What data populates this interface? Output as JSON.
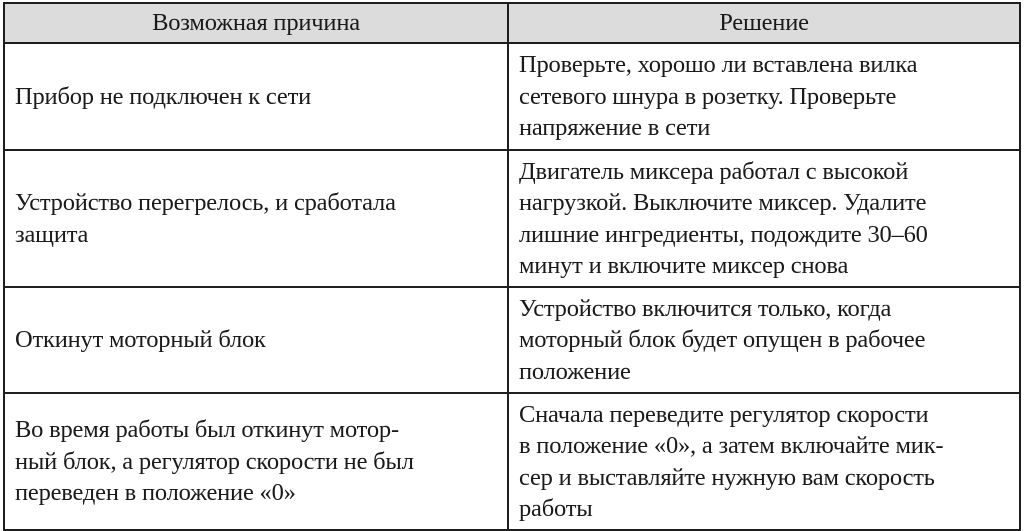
{
  "table": {
    "headers": [
      "Возможная причина",
      "Решение"
    ],
    "rows": [
      {
        "cause": "Прибор не подключен к сети",
        "solution": "Проверьте, хорошо ли вставлена вилка\nсетевого шнура в розетку. Проверьте\nнапряжение в сети"
      },
      {
        "cause": "Устройство перегрелось, и сработала\nзащита",
        "solution": "Двигатель миксера работал с высокой\nнагрузкой. Выключите миксер. Удалите\nлишние ингредиенты, подождите 30–60\nминут и включите миксер снова"
      },
      {
        "cause": "Откинут моторный блок",
        "solution": "Устройство включится только, когда\nмоторный блок будет опущен в рабочее\nположение"
      },
      {
        "cause": "Во время работы был откинут мотор-\nный блок, а регулятор скорости не был\nпереведен в положение «0»",
        "solution": "Сначала переведите регулятор скорости\nв положение «0», а затем включайте мик-\nсер и выставляйте нужную вам скорость\nработы"
      }
    ]
  }
}
